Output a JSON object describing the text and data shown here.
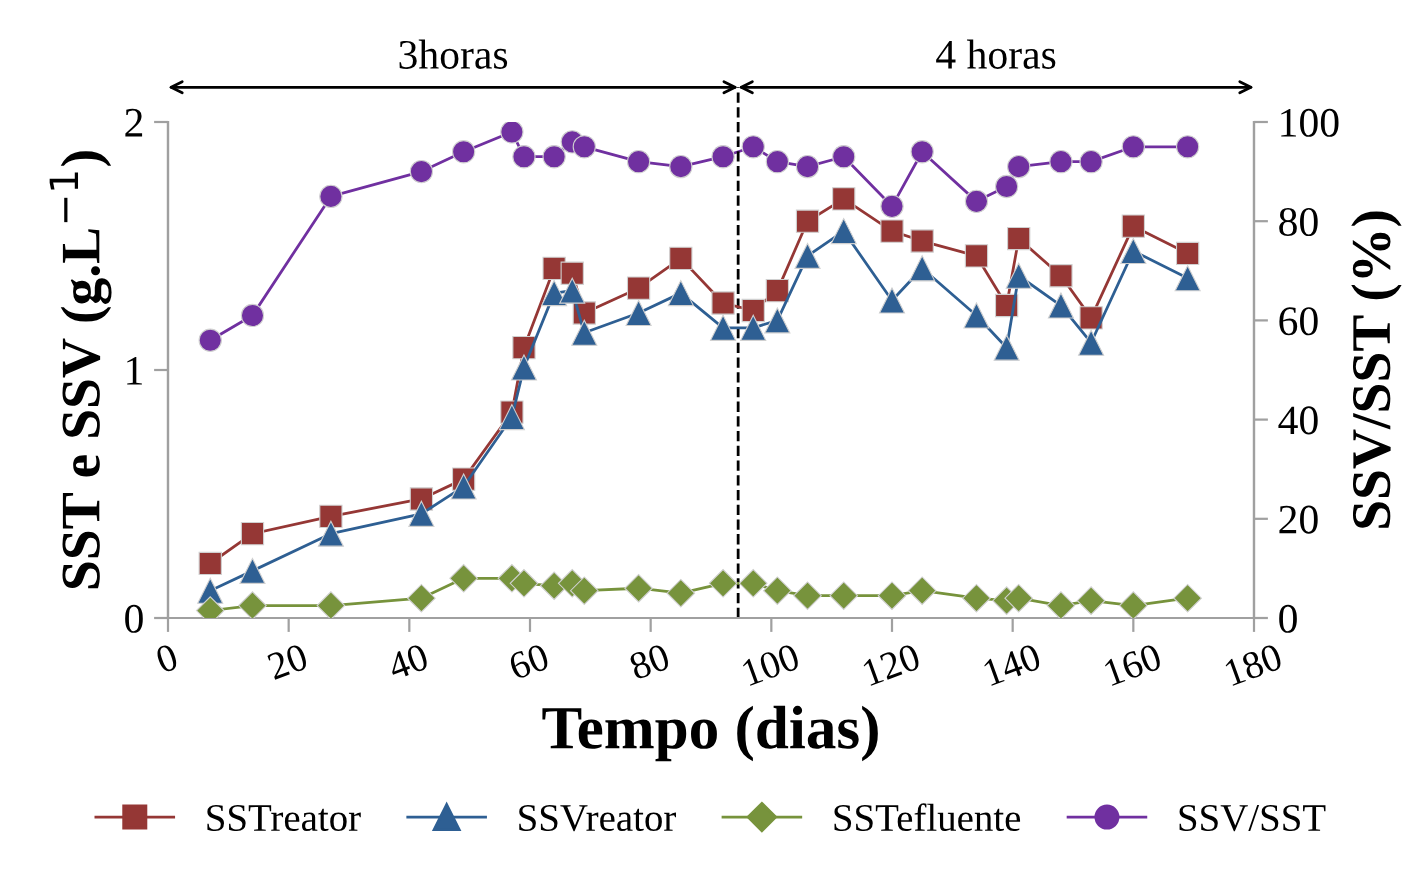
{
  "chart_data": {
    "type": "line",
    "xlabel": "Tempo (dias)",
    "ylabel": "SST e SSV (g.L$^{−1}$)",
    "y2label": "SSV/SST (%)",
    "x": [
      7,
      14,
      27,
      42,
      49,
      57,
      59,
      64,
      67,
      69,
      78,
      85,
      92,
      97,
      101,
      106,
      112,
      120,
      125,
      134,
      139,
      141,
      148,
      153,
      160,
      169
    ],
    "series": [
      {
        "name": "SSTreator",
        "color": "#953735",
        "marker": "square",
        "values": [
          0.22,
          0.34,
          0.41,
          0.48,
          0.56,
          0.83,
          1.09,
          1.41,
          1.39,
          1.23,
          1.33,
          1.45,
          1.27,
          1.24,
          1.32,
          1.6,
          1.69,
          1.56,
          1.52,
          1.46,
          1.26,
          1.53,
          1.38,
          1.21,
          1.58,
          1.47
        ]
      },
      {
        "name": "SSVreator",
        "color": "#2e5f93",
        "marker": "triangle",
        "values": [
          0.11,
          0.19,
          0.34,
          0.42,
          0.53,
          0.81,
          1.01,
          1.31,
          1.32,
          1.15,
          1.23,
          1.31,
          1.17,
          1.17,
          1.2,
          1.46,
          1.56,
          1.28,
          1.41,
          1.22,
          1.09,
          1.38,
          1.26,
          1.11,
          1.48,
          1.37
        ]
      },
      {
        "name": "SSTefluente",
        "color": "#77933c",
        "marker": "diamond",
        "values": [
          0.03,
          0.05,
          0.05,
          0.08,
          0.16,
          0.16,
          0.14,
          0.13,
          0.14,
          0.11,
          0.12,
          0.1,
          0.14,
          0.14,
          0.11,
          0.09,
          0.09,
          0.09,
          0.11,
          0.08,
          0.07,
          0.08,
          0.05,
          0.07,
          0.05,
          0.08
        ]
      },
      {
        "name": "SSV/SST",
        "color": "#7030a0",
        "marker": "circle",
        "axis": "y2",
        "values": [
          56,
          61,
          85,
          90,
          94,
          98,
          93,
          93,
          96,
          95,
          92,
          91,
          93,
          95,
          92,
          91,
          93,
          83,
          94,
          84,
          87,
          91,
          92,
          92,
          95,
          95
        ]
      }
    ],
    "xlim": [
      0,
      180
    ],
    "xticks": [
      0,
      20,
      40,
      60,
      80,
      100,
      120,
      140,
      160,
      180
    ],
    "ylim": [
      0,
      2
    ],
    "yticks": [
      0,
      1,
      2
    ],
    "y2lim": [
      0,
      100
    ],
    "y2ticks": [
      0,
      20,
      40,
      60,
      80,
      100
    ],
    "ref_lines": [
      {
        "axis": "x",
        "value": 94.5,
        "color": "#000000",
        "line_style": "dashed"
      }
    ],
    "annotations": [
      "3horas",
      "4 horas"
    ],
    "legend": "bottom",
    "grid": false
  }
}
